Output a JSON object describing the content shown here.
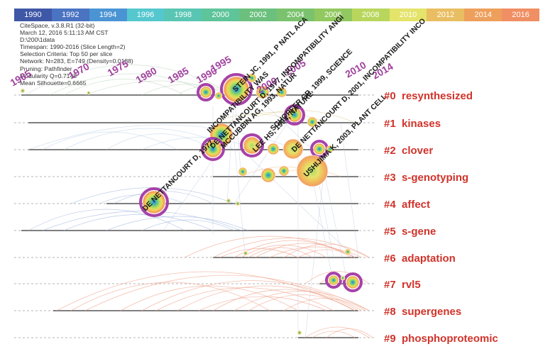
{
  "timeline_colors": [
    "#3e57a6",
    "#4a73c2",
    "#4b94d4",
    "#55c7cf",
    "#59c6b3",
    "#5ec49a",
    "#6cc07e",
    "#7bc26e",
    "#91c85f",
    "#b9d65c",
    "#e4e36a",
    "#e9be62",
    "#ee9f5b",
    "#f08f63"
  ],
  "years": [
    "1990",
    "1992",
    "1994",
    "1996",
    "1998",
    "2000",
    "2002",
    "2004",
    "2006",
    "2008",
    "2010",
    "2012",
    "2014",
    "2016"
  ],
  "meta": [
    "CiteSpace, v.3.8.R1 (32-bit)",
    "March 12, 2016 5:11:13 AM CST",
    "D:\\200\\1data",
    "Timespan: 1990-2016 (Slice Length=2)",
    "Selection Criteria: Top 50 per slice",
    "Network: N=283, E=749 (Density=0.0188)",
    "Pruning: Pathfinder",
    "Modularity Q=0.7148",
    "Mean Silhouette=0.6665"
  ],
  "clusters": [
    {
      "id": "#0",
      "label": "resynthesized"
    },
    {
      "id": "#1",
      "label": "kinases"
    },
    {
      "id": "#2",
      "label": "clover"
    },
    {
      "id": "#3",
      "label": "s-genotyping"
    },
    {
      "id": "#4",
      "label": "affect"
    },
    {
      "id": "#5",
      "label": "s-gene"
    },
    {
      "id": "#6",
      "label": "adaptation"
    },
    {
      "id": "#7",
      "label": "rvl5"
    },
    {
      "id": "#8",
      "label": "supergenes"
    },
    {
      "id": "#9",
      "label": "phosphoproteomic"
    }
  ],
  "year_labels": [
    "1965",
    "1970",
    "1975",
    "1980",
    "1985",
    "1990",
    "1995",
    "2000",
    "2005",
    "2010",
    "2014"
  ],
  "node_labels": [
    "STEIN JC, 1991, P NATL ACA",
    "INCOMPATIBILITY WAS",
    "MCCUBBIN AG, 1993, NATUR",
    "LEE HS, 1994, NATURE",
    "SCHOPFER CR, 1999, SCIENCE",
    "DE NETTANCOURT D, 2001, INCOMPATIBILITY INCO",
    "USHIJIMA K, 2003, PLANT CELL",
    "DE NETTANCOURT D, 1977, INCOMPATIBILITY ANGI",
    "DE NETTANCOURT D, 1977"
  ],
  "colors": {
    "cluster_label": "#d0332a",
    "year_label": "#a0429e",
    "pink_arc": "#f0a58e",
    "purple": "#a642a8"
  }
}
